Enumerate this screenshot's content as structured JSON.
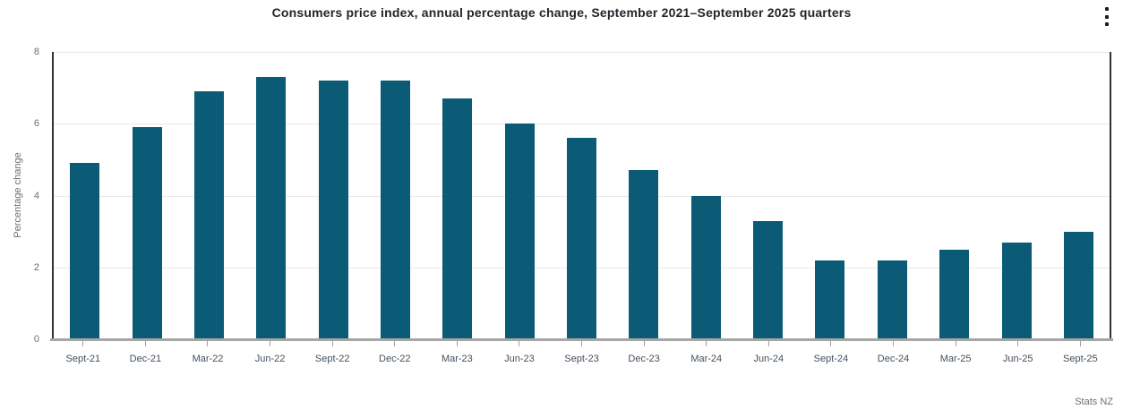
{
  "header": {
    "title": "Consumers price index, annual percentage change, September 2021–September 2025 quarters",
    "menu_icon": "kebab-vertical-menu"
  },
  "chart_data": {
    "type": "bar",
    "title": "Consumers price index, annual percentage change, September 2021–September 2025 quarters",
    "xlabel": "",
    "ylabel": "Percentage change",
    "ylim": [
      0,
      8
    ],
    "yticks": [
      0,
      2,
      4,
      6,
      8
    ],
    "grid": true,
    "legend": "none",
    "bar_color": "#0b5b77",
    "categories": [
      "Sept-21",
      "Dec-21",
      "Mar-22",
      "Jun-22",
      "Sept-22",
      "Dec-22",
      "Mar-23",
      "Jun-23",
      "Sept-23",
      "Dec-23",
      "Mar-24",
      "Jun-24",
      "Sept-24",
      "Dec-24",
      "Mar-25",
      "Jun-25",
      "Sept-25"
    ],
    "values": [
      4.9,
      5.9,
      6.9,
      7.3,
      7.2,
      7.2,
      6.7,
      6.0,
      5.6,
      4.7,
      4.0,
      3.3,
      2.2,
      2.2,
      2.5,
      2.7,
      3.0
    ]
  },
  "footer": {
    "attribution": "Stats NZ"
  },
  "colors": {
    "bar": "#0b5b77",
    "gridline": "#e8e8e8",
    "axis_border": "#2f3236",
    "baseline": "#a6a6a6",
    "title_text": "#21252b",
    "axis_text": "#6e6e6e",
    "x_label_text": "#44505c"
  }
}
